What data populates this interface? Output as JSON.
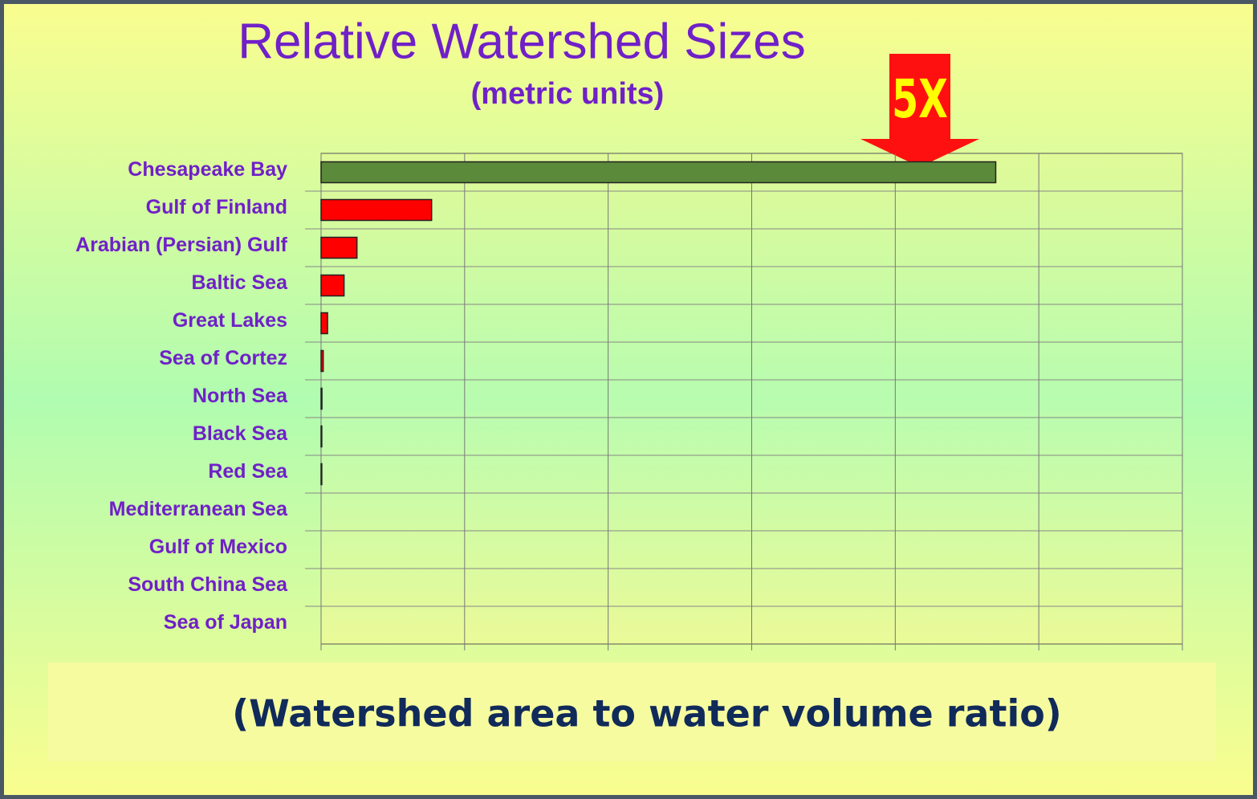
{
  "chart_data": {
    "type": "hbar",
    "title": "Relative Watershed Sizes",
    "subtitle": "(metric units)",
    "categories": [
      "Chesapeake Bay",
      "Gulf of Finland",
      "Arabian (Persian) Gulf",
      "Baltic Sea",
      "Great Lakes",
      "Sea of Cortez",
      "North Sea",
      "Black Sea",
      "Red Sea",
      "Mediterranean Sea",
      "Gulf of Mexico",
      "South China Sea",
      "Sea of Japan"
    ],
    "values": [
      4.7,
      0.77,
      0.25,
      0.16,
      0.045,
      0.015,
      0.006,
      0.005,
      0.005,
      0,
      0,
      0,
      0
    ],
    "colors": [
      "#5a8a3a",
      "#ff0000",
      "#ff0000",
      "#ff0000",
      "#ff0000",
      "#ff0000",
      "#ff0000",
      "#ff0000",
      "#ff0000",
      "#ff0000",
      "#ff0000",
      "#ff0000",
      "#ff0000"
    ],
    "xlim": [
      0,
      6
    ],
    "xticks": [
      0,
      1,
      2,
      3,
      4,
      5,
      6
    ],
    "grid": true,
    "annotation": "5X",
    "xlabel": "(Watershed area to water volume ratio)"
  }
}
